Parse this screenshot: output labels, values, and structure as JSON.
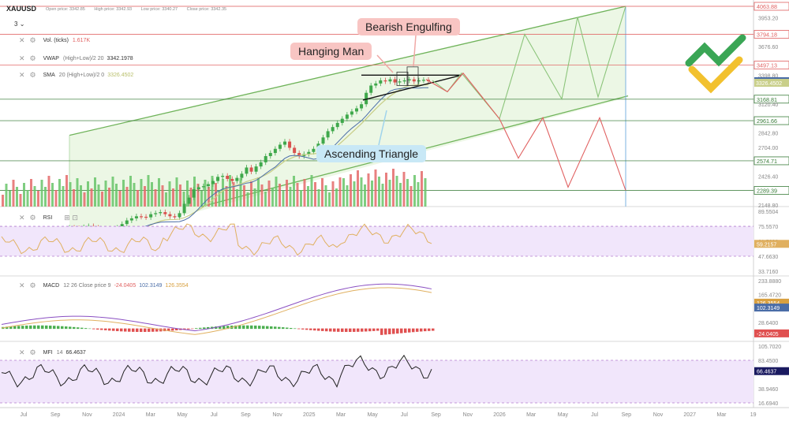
{
  "header": {
    "symbol": "XAUUSD",
    "open_label": "Open price: 3342.85",
    "high_label": "High price: 3342.93",
    "low_label": "Low price: 3340.27",
    "close_label": "Close price: 3342.35",
    "timeframe": "3"
  },
  "indicators": {
    "vol": {
      "name": "Vol. (ticks)",
      "value": "1.617K"
    },
    "vwap": {
      "name": "VWAP",
      "params": "(High+Low)/2 20",
      "value": "3342.1978"
    },
    "sma": {
      "name": "SMA",
      "params": "20 (High+Low)/2 0",
      "value": "3326.4502"
    },
    "rsi": {
      "name": "RSI"
    },
    "macd": {
      "name": "MACD",
      "params": "12 26 Close price 9",
      "v1": "-24.0405",
      "v2": "102.3149",
      "v3": "126.3554"
    },
    "mfi": {
      "name": "MFI",
      "params": "14",
      "value": "66.4637"
    }
  },
  "annotations": {
    "bearish_engulfing": "Bearish Engulfing",
    "hanging_man": "Hanging Man",
    "ascending_triangle": "Ascending Triangle"
  },
  "chart_data": [
    {
      "type": "candlestick",
      "panel": "price",
      "x_ticks": [
        "Jul",
        "Sep",
        "Nov",
        "2024",
        "Mar",
        "May",
        "Jul",
        "Sep",
        "Nov",
        "2025",
        "Mar",
        "May",
        "Jul",
        "Sep",
        "Nov",
        "2026",
        "Mar",
        "May",
        "Jul",
        "Sep",
        "Nov",
        "2027",
        "Mar",
        "19"
      ],
      "y_ticks": [
        "3953.20",
        "3676.60",
        "3398.80",
        "3120.40",
        "2842.80",
        "2704.00",
        "2426.40",
        "2148.80"
      ],
      "y_range": [
        2148.8,
        4063.88
      ],
      "horizontal_levels": [
        {
          "value": "4063.88",
          "color": "#e06060"
        },
        {
          "value": "3794.18",
          "color": "#e06060"
        },
        {
          "value": "3497.13",
          "color": "#e06060"
        },
        {
          "value": "3168.81",
          "color": "#3a7d3a"
        },
        {
          "value": "2961.66",
          "color": "#3a7d3a"
        },
        {
          "value": "2574.71",
          "color": "#3a7d3a"
        },
        {
          "value": "2289.39",
          "color": "#3a7d3a"
        }
      ],
      "current_labels": [
        {
          "value": "3342.1978",
          "color": "#4a6da7"
        },
        {
          "value": "3326.4502",
          "color": "#c9cf8a"
        }
      ],
      "close_series": [
        1930,
        1925,
        1915,
        1935,
        1945,
        1930,
        1905,
        1870,
        1860,
        1880,
        1930,
        1965,
        2000,
        2020,
        2040,
        2035,
        2030,
        2060,
        2070,
        2080,
        2060,
        2040,
        2030,
        2070,
        2160,
        2220,
        2300,
        2320,
        2330,
        2350,
        2380,
        2420,
        2430,
        2400,
        2380,
        2410,
        2450,
        2510,
        2470,
        2520,
        2560,
        2620,
        2650,
        2690,
        2730,
        2760,
        2700,
        2650,
        2620,
        2640,
        2660,
        2690,
        2740,
        2800,
        2860,
        2900,
        2940,
        2980,
        3020,
        3050,
        3080,
        3120,
        3230,
        3300,
        3320,
        3350,
        3340,
        3360,
        3330,
        3340,
        3350,
        3360,
        3340,
        3350,
        3355,
        3342
      ]
    },
    {
      "type": "line",
      "panel": "RSI",
      "y_ticks": [
        "89.5504",
        "75.5570",
        "61.5636",
        "47.6630",
        "33.7160"
      ],
      "y_range": [
        33.716,
        89.5504
      ],
      "current_value": "59.2157"
    },
    {
      "type": "line",
      "panel": "MACD",
      "y_ticks": [
        "233.8880",
        "165.4720",
        "28.6400"
      ],
      "y_range": [
        -40,
        233.888
      ],
      "current_values": [
        "126.3554",
        "102.3149",
        "-24.0405"
      ]
    },
    {
      "type": "line",
      "panel": "MFI",
      "y_ticks": [
        "105.7020",
        "83.4500",
        "38.9460",
        "16.6940"
      ],
      "y_range": [
        16.694,
        105.702
      ],
      "current_value": "66.4637"
    }
  ]
}
